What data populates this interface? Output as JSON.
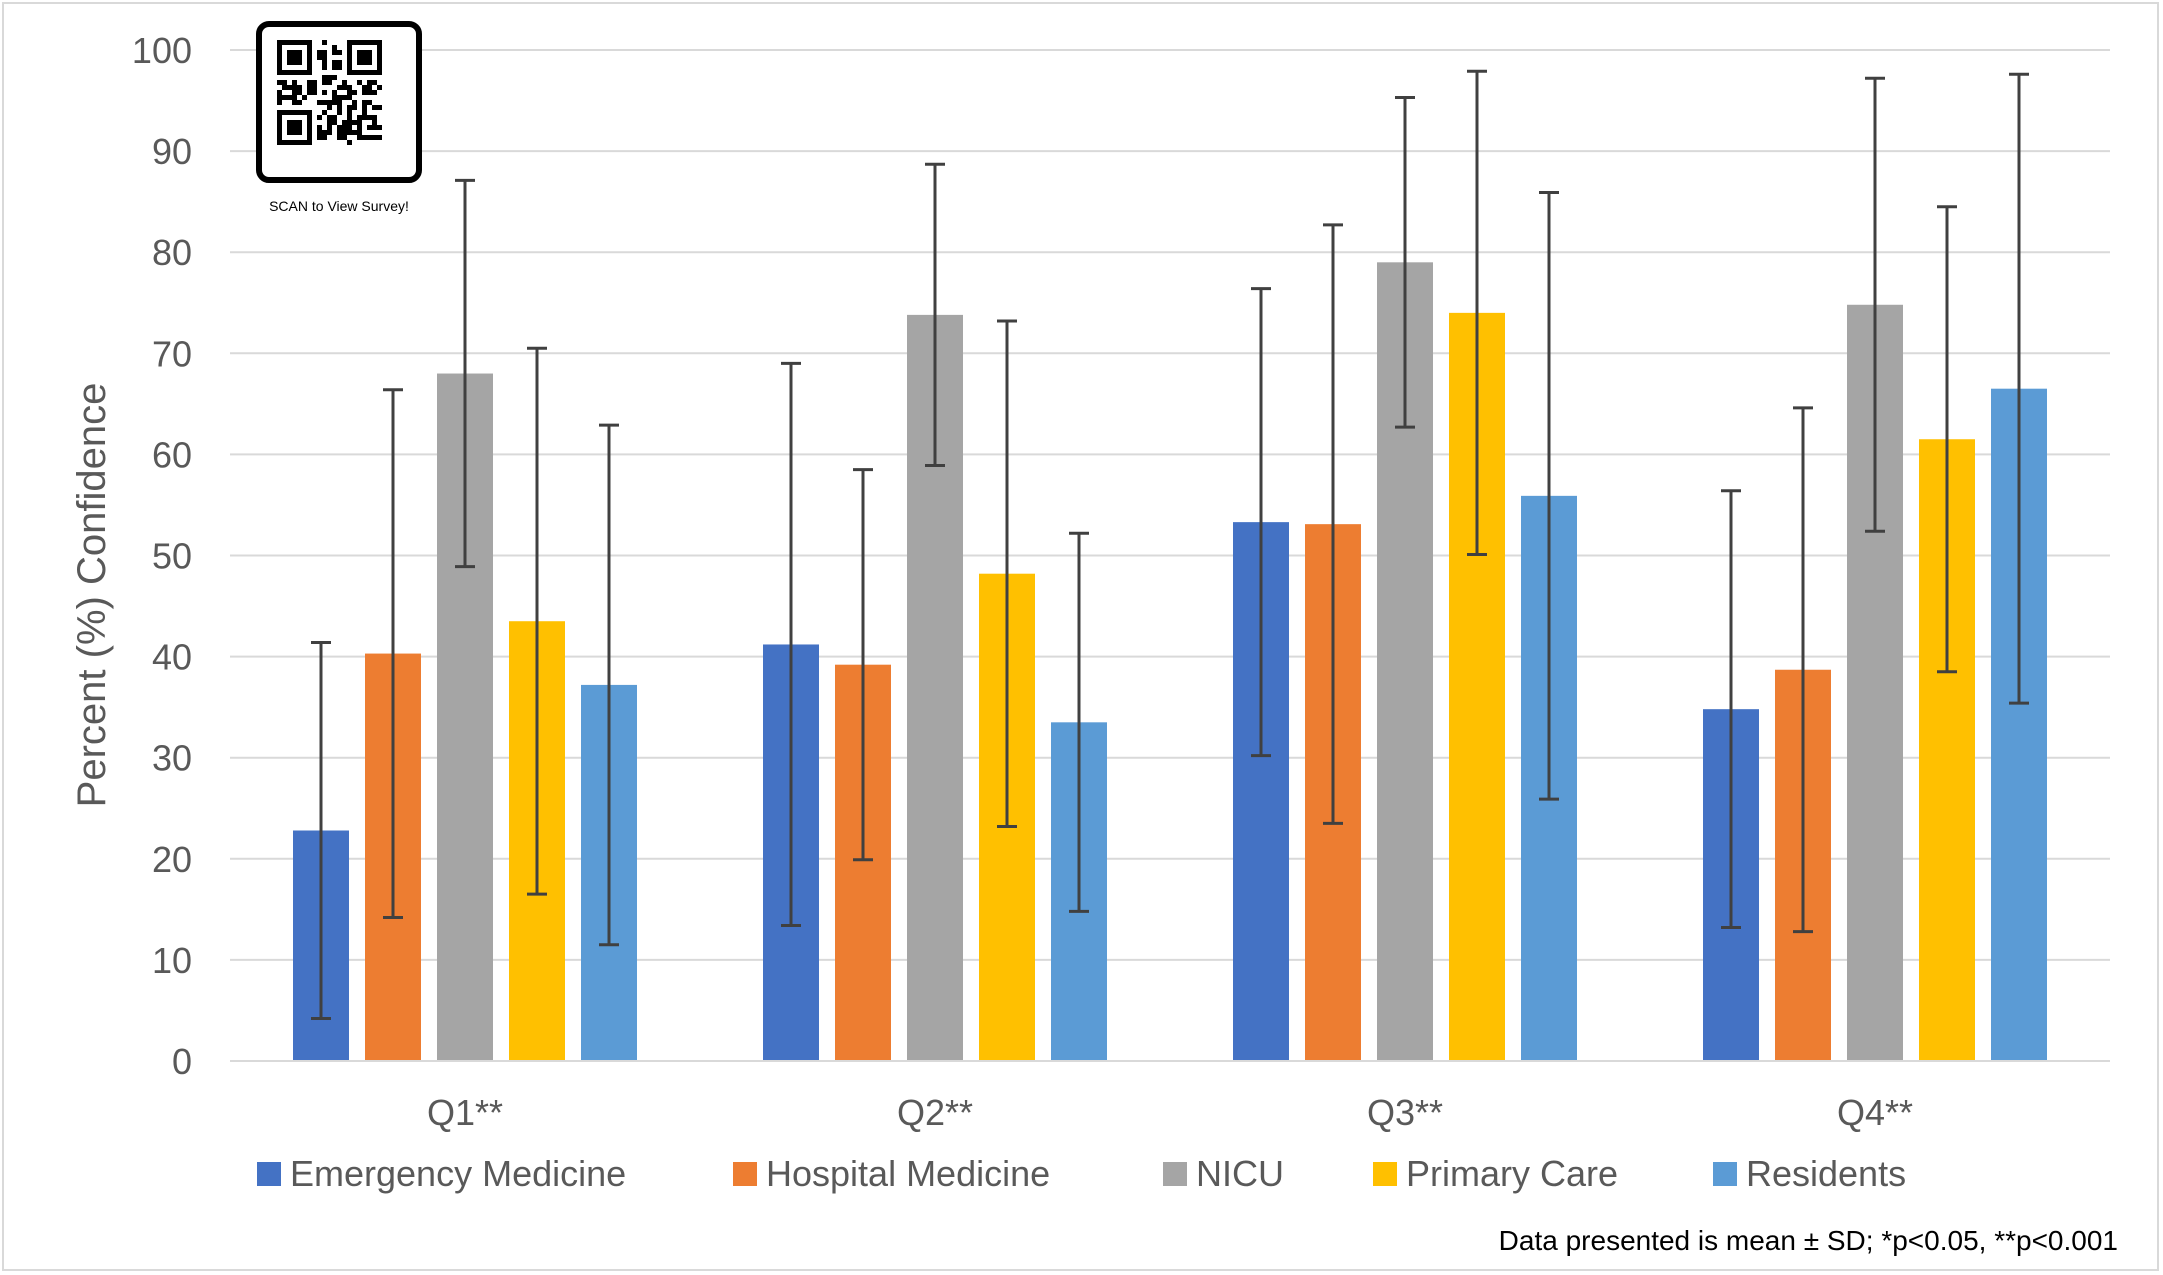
{
  "chart_data": {
    "type": "bar",
    "title": "",
    "xlabel": "",
    "ylabel": "Percent (%) Confidence",
    "ylim": [
      0,
      100
    ],
    "yticks": [
      0,
      10,
      20,
      30,
      40,
      50,
      60,
      70,
      80,
      90,
      100
    ],
    "grid": true,
    "legend_position": "bottom",
    "categories": [
      "Q1**",
      "Q2**",
      "Q3**",
      "Q4**"
    ],
    "series": [
      {
        "name": "Emergency Medicine",
        "color": "#4472c4",
        "values": [
          22.8,
          41.2,
          53.3,
          34.8
        ],
        "sd": [
          18.6,
          27.8,
          23.1,
          21.6
        ]
      },
      {
        "name": "Hospital Medicine",
        "color": "#ed7d31",
        "values": [
          40.3,
          39.2,
          53.1,
          38.7
        ],
        "sd": [
          26.1,
          19.3,
          29.6,
          25.9
        ]
      },
      {
        "name": "NICU",
        "color": "#a5a5a5",
        "values": [
          68.0,
          73.8,
          79.0,
          74.8
        ],
        "sd": [
          19.1,
          14.9,
          16.3,
          22.4
        ]
      },
      {
        "name": "Primary Care",
        "color": "#ffc000",
        "values": [
          43.5,
          48.2,
          74.0,
          61.5
        ],
        "sd": [
          27.0,
          25.0,
          23.9,
          23.0
        ]
      },
      {
        "name": "Residents",
        "color": "#5b9bd5",
        "values": [
          37.2,
          33.5,
          55.9,
          66.5
        ],
        "sd": [
          25.7,
          18.7,
          30.0,
          31.1
        ]
      }
    ],
    "annotations": [
      "Data presented is mean ± SD; *p<0.05, **p<0.001"
    ]
  },
  "qr": {
    "caption": "SCAN to View Survey!",
    "icon": "qr-code-icon"
  },
  "footnote": "Data presented is mean ± SD; *p<0.05, **p<0.001"
}
